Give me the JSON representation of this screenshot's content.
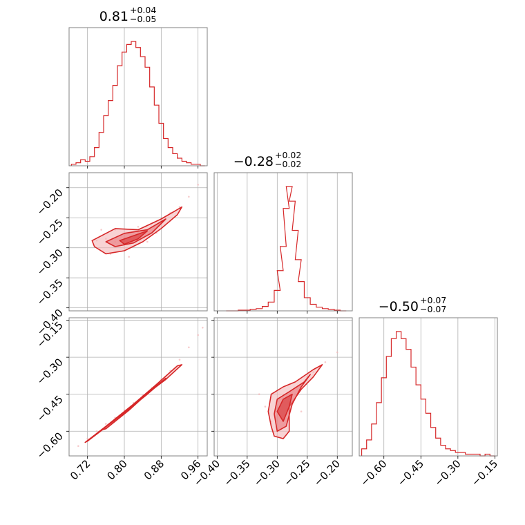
{
  "figure": {
    "color": "#d62728",
    "fill_light": "#f4b6b8",
    "fill_mid": "#e8767a",
    "fill_dark": "#d62728"
  },
  "titles": [
    {
      "main": "0.81",
      "sup": "+0.04",
      "sub": "−0.05"
    },
    {
      "main": "−0.28",
      "sup": "+0.02",
      "sub": "−0.02"
    },
    {
      "main": "−0.50",
      "sup": "+0.07",
      "sub": "−0.07"
    }
  ],
  "ticks": {
    "p0": [
      "0.72",
      "0.80",
      "0.88",
      "0.96"
    ],
    "p1": [
      "−0.40",
      "−0.35",
      "−0.30",
      "−0.25",
      "−0.20"
    ],
    "p2": [
      "−0.60",
      "−0.45",
      "−0.30",
      "−0.15"
    ]
  },
  "chart_data": {
    "type": "corner",
    "grid": true,
    "parameters": [
      {
        "name": "",
        "median": 0.81,
        "err_plus": 0.04,
        "err_minus": 0.05,
        "range": [
          0.68,
          0.98
        ],
        "tick_values": [
          0.72,
          0.8,
          0.88,
          0.96
        ]
      },
      {
        "name": "",
        "median": -0.28,
        "err_plus": 0.02,
        "err_minus": 0.02,
        "range": [
          -0.405,
          -0.175
        ],
        "tick_values": [
          -0.4,
          -0.35,
          -0.3,
          -0.25,
          -0.2
        ]
      },
      {
        "name": "",
        "median": -0.5,
        "err_plus": 0.07,
        "err_minus": 0.07,
        "range": [
          -0.7,
          -0.14
        ],
        "tick_values": [
          -0.6,
          -0.45,
          -0.3,
          -0.15
        ]
      }
    ],
    "histograms": [
      {
        "param": 0,
        "x": [
          0.69,
          0.7,
          0.71,
          0.72,
          0.73,
          0.74,
          0.75,
          0.76,
          0.77,
          0.78,
          0.79,
          0.8,
          0.81,
          0.82,
          0.83,
          0.84,
          0.85,
          0.86,
          0.87,
          0.88,
          0.89,
          0.9,
          0.91,
          0.92,
          0.93,
          0.94,
          0.95,
          0.96,
          0.97
        ],
        "counts": [
          1,
          2,
          4,
          3,
          6,
          12,
          22,
          33,
          43,
          53,
          66,
          75,
          80,
          82,
          78,
          72,
          65,
          52,
          40,
          28,
          18,
          12,
          8,
          5,
          3,
          2,
          1,
          1,
          0
        ]
      },
      {
        "param": 1,
        "x": [
          -0.38,
          -0.37,
          -0.36,
          -0.35,
          -0.34,
          -0.33,
          -0.32,
          -0.31,
          -0.3,
          -0.295,
          -0.29,
          -0.285,
          -0.28,
          -0.275,
          -0.27,
          -0.265,
          -0.26,
          -0.25,
          -0.24,
          -0.23,
          -0.22,
          -0.21,
          -0.2,
          -0.19
        ],
        "counts": [
          0,
          0,
          1,
          1,
          2,
          3,
          6,
          12,
          28,
          55,
          88,
          140,
          170,
          150,
          110,
          70,
          40,
          18,
          9,
          5,
          3,
          2,
          1,
          0
        ]
      },
      {
        "param": 2,
        "x": [
          -0.68,
          -0.66,
          -0.64,
          -0.62,
          -0.6,
          -0.58,
          -0.56,
          -0.54,
          -0.52,
          -0.5,
          -0.48,
          -0.46,
          -0.44,
          -0.42,
          -0.4,
          -0.38,
          -0.36,
          -0.34,
          -0.32,
          -0.3,
          -0.28,
          -0.26,
          -0.24,
          -0.22,
          -0.2,
          -0.18,
          -0.16
        ],
        "counts": [
          4,
          9,
          18,
          30,
          44,
          56,
          66,
          70,
          66,
          60,
          50,
          40,
          32,
          24,
          16,
          10,
          6,
          4,
          3,
          2,
          2,
          1,
          1,
          1,
          0,
          1,
          0
        ]
      }
    ],
    "scatters": [
      {
        "x_param": 0,
        "y_param": 1,
        "points": [
          [
            0.74,
            -0.288
          ],
          [
            0.76,
            -0.285
          ],
          [
            0.78,
            -0.29
          ],
          [
            0.8,
            -0.283
          ],
          [
            0.82,
            -0.28
          ],
          [
            0.84,
            -0.275
          ],
          [
            0.86,
            -0.265
          ],
          [
            0.88,
            -0.255
          ],
          [
            0.9,
            -0.242
          ],
          [
            0.92,
            -0.232
          ],
          [
            0.94,
            -0.215
          ],
          [
            0.96,
            -0.195
          ],
          [
            0.78,
            -0.27
          ],
          [
            0.8,
            -0.3
          ],
          [
            0.83,
            -0.265
          ],
          [
            0.85,
            -0.29
          ],
          [
            0.77,
            -0.31
          ],
          [
            0.75,
            -0.27
          ],
          [
            0.81,
            -0.315
          ],
          [
            0.87,
            -0.275
          ]
        ]
      },
      {
        "x_param": 0,
        "y_param": 2,
        "points": [
          [
            0.7,
            -0.66
          ],
          [
            0.72,
            -0.63
          ],
          [
            0.74,
            -0.6
          ],
          [
            0.76,
            -0.57
          ],
          [
            0.78,
            -0.545
          ],
          [
            0.8,
            -0.515
          ],
          [
            0.82,
            -0.485
          ],
          [
            0.84,
            -0.455
          ],
          [
            0.86,
            -0.425
          ],
          [
            0.88,
            -0.39
          ],
          [
            0.9,
            -0.355
          ],
          [
            0.92,
            -0.31
          ],
          [
            0.94,
            -0.26
          ],
          [
            0.96,
            -0.21
          ],
          [
            0.97,
            -0.18
          ]
        ]
      },
      {
        "x_param": 1,
        "y_param": 2,
        "points": [
          [
            -0.32,
            -0.5
          ],
          [
            -0.31,
            -0.56
          ],
          [
            -0.3,
            -0.48
          ],
          [
            -0.29,
            -0.55
          ],
          [
            -0.28,
            -0.5
          ],
          [
            -0.27,
            -0.45
          ],
          [
            -0.26,
            -0.42
          ],
          [
            -0.25,
            -0.38
          ],
          [
            -0.24,
            -0.36
          ],
          [
            -0.22,
            -0.32
          ],
          [
            -0.2,
            -0.28
          ],
          [
            -0.3,
            -0.62
          ],
          [
            -0.28,
            -0.6
          ],
          [
            -0.33,
            -0.45
          ],
          [
            -0.26,
            -0.52
          ]
        ]
      }
    ],
    "contours": [
      {
        "x_param": 0,
        "y_param": 1,
        "levels": [
          [
            [
              0.73,
              -0.288
            ],
            [
              0.78,
              -0.268
            ],
            [
              0.83,
              -0.27
            ],
            [
              0.88,
              -0.252
            ],
            [
              0.925,
              -0.232
            ],
            [
              0.915,
              -0.245
            ],
            [
              0.88,
              -0.268
            ],
            [
              0.84,
              -0.29
            ],
            [
              0.8,
              -0.305
            ],
            [
              0.76,
              -0.31
            ],
            [
              0.735,
              -0.298
            ]
          ],
          [
            [
              0.76,
              -0.29
            ],
            [
              0.8,
              -0.276
            ],
            [
              0.85,
              -0.27
            ],
            [
              0.89,
              -0.252
            ],
            [
              0.86,
              -0.275
            ],
            [
              0.82,
              -0.292
            ],
            [
              0.78,
              -0.298
            ]
          ],
          [
            [
              0.79,
              -0.288
            ],
            [
              0.82,
              -0.28
            ],
            [
              0.85,
              -0.272
            ],
            [
              0.83,
              -0.285
            ],
            [
              0.8,
              -0.294
            ]
          ]
        ]
      },
      {
        "x_param": 0,
        "y_param": 2,
        "levels": [
          [
            [
              0.72,
              -0.64
            ],
            [
              0.78,
              -0.555
            ],
            [
              0.84,
              -0.46
            ],
            [
              0.89,
              -0.39
            ],
            [
              0.925,
              -0.33
            ],
            [
              0.915,
              -0.335
            ],
            [
              0.87,
              -0.41
            ],
            [
              0.82,
              -0.49
            ],
            [
              0.76,
              -0.58
            ],
            [
              0.715,
              -0.645
            ]
          ],
          [
            [
              0.75,
              -0.595
            ],
            [
              0.8,
              -0.525
            ],
            [
              0.85,
              -0.45
            ],
            [
              0.89,
              -0.385
            ],
            [
              0.86,
              -0.43
            ],
            [
              0.81,
              -0.515
            ],
            [
              0.76,
              -0.59
            ]
          ]
        ]
      },
      {
        "x_param": 1,
        "y_param": 2,
        "levels": [
          [
            [
              -0.315,
              -0.52
            ],
            [
              -0.31,
              -0.45
            ],
            [
              -0.29,
              -0.42
            ],
            [
              -0.27,
              -0.4
            ],
            [
              -0.24,
              -0.35
            ],
            [
              -0.225,
              -0.33
            ],
            [
              -0.24,
              -0.38
            ],
            [
              -0.26,
              -0.43
            ],
            [
              -0.28,
              -0.5
            ],
            [
              -0.28,
              -0.6
            ],
            [
              -0.29,
              -0.63
            ],
            [
              -0.305,
              -0.62
            ],
            [
              -0.31,
              -0.58
            ]
          ],
          [
            [
              -0.305,
              -0.53
            ],
            [
              -0.3,
              -0.47
            ],
            [
              -0.28,
              -0.44
            ],
            [
              -0.255,
              -0.4
            ],
            [
              -0.245,
              -0.37
            ],
            [
              -0.26,
              -0.42
            ],
            [
              -0.275,
              -0.49
            ],
            [
              -0.285,
              -0.58
            ],
            [
              -0.3,
              -0.6
            ]
          ],
          [
            [
              -0.3,
              -0.52
            ],
            [
              -0.29,
              -0.47
            ],
            [
              -0.275,
              -0.45
            ],
            [
              -0.28,
              -0.5
            ],
            [
              -0.29,
              -0.56
            ]
          ]
        ]
      }
    ]
  }
}
